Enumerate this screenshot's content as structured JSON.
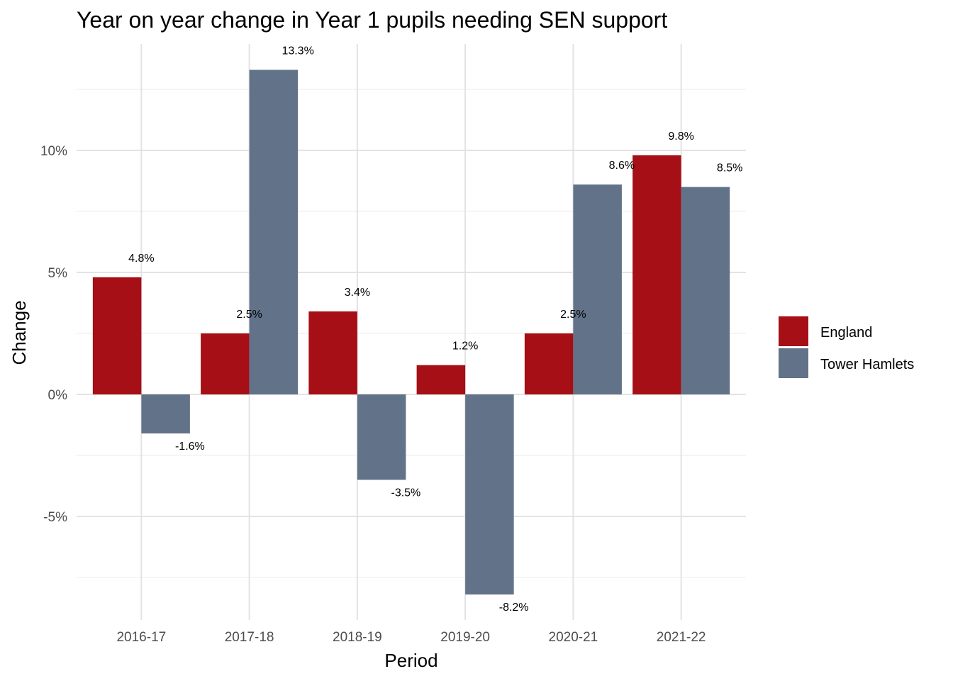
{
  "chart_data": {
    "type": "bar",
    "title": "Year on year change in Year 1 pupils needing SEN support",
    "xlabel": "Period",
    "ylabel": "Change",
    "categories": [
      "2016-17",
      "2017-18",
      "2018-19",
      "2019-20",
      "2020-21",
      "2021-22"
    ],
    "series": [
      {
        "name": "England",
        "color": "#a50f15",
        "values": [
          4.8,
          2.5,
          3.4,
          1.2,
          2.5,
          9.8
        ],
        "labels": [
          "4.8%",
          "2.5%",
          "3.4%",
          "1.2%",
          "2.5%",
          "9.8%"
        ]
      },
      {
        "name": "Tower Hamlets",
        "color": "#617289",
        "values": [
          -1.6,
          13.3,
          -3.5,
          -8.2,
          8.6,
          8.5
        ],
        "labels": [
          "-1.6%",
          "13.3%",
          "-3.5%",
          "-8.2%",
          "8.6%",
          "8.5%"
        ]
      }
    ],
    "ylim": [
      -9.2,
      14.1
    ],
    "yticks": [
      -5,
      0,
      5,
      10
    ],
    "ytick_labels": [
      "-5%",
      "0%",
      "5%",
      "10%"
    ],
    "grid": true,
    "legend_position": "right"
  }
}
